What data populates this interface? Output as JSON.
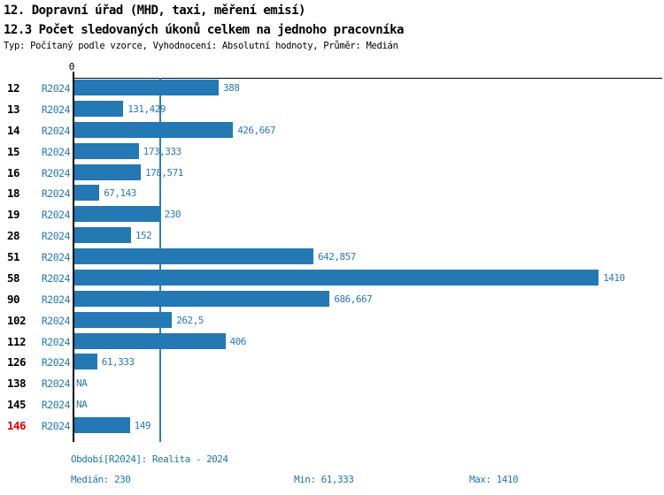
{
  "header": {
    "title1": "12. Dopravní úřad (MHD, taxi, měření emisí)",
    "title2": "12.3 Počet sledovaných úkonů celkem na jednoho pracovníka",
    "subtitle": "Typ: Počítaný podle vzorce, Vyhodnocení: Absolutní hodnoty, Průměr: Medián"
  },
  "chart_data": {
    "type": "bar",
    "orientation": "horizontal",
    "title": "12.3 Počet sledovaných úkonů celkem na jednoho pracovníka",
    "axis_zero_label": "0",
    "xlim": [
      0,
      1580
    ],
    "median_value": 230,
    "rows": [
      {
        "id": "12",
        "period": "R2024",
        "value": 388,
        "value_label": "388"
      },
      {
        "id": "13",
        "period": "R2024",
        "value": 131.429,
        "value_label": "131,429"
      },
      {
        "id": "14",
        "period": "R2024",
        "value": 426.667,
        "value_label": "426,667"
      },
      {
        "id": "15",
        "period": "R2024",
        "value": 173.333,
        "value_label": "173,333"
      },
      {
        "id": "16",
        "period": "R2024",
        "value": 178.571,
        "value_label": "178,571"
      },
      {
        "id": "18",
        "period": "R2024",
        "value": 67.143,
        "value_label": "67,143"
      },
      {
        "id": "19",
        "period": "R2024",
        "value": 230,
        "value_label": "230"
      },
      {
        "id": "28",
        "period": "R2024",
        "value": 152,
        "value_label": "152"
      },
      {
        "id": "51",
        "period": "R2024",
        "value": 642.857,
        "value_label": "642,857"
      },
      {
        "id": "58",
        "period": "R2024",
        "value": 1410,
        "value_label": "1410"
      },
      {
        "id": "90",
        "period": "R2024",
        "value": 686.667,
        "value_label": "686,667"
      },
      {
        "id": "102",
        "period": "R2024",
        "value": 262.5,
        "value_label": "262,5"
      },
      {
        "id": "112",
        "period": "R2024",
        "value": 406,
        "value_label": "406"
      },
      {
        "id": "126",
        "period": "R2024",
        "value": 61.333,
        "value_label": "61,333"
      },
      {
        "id": "138",
        "period": "R2024",
        "value": null,
        "value_label": "NA"
      },
      {
        "id": "145",
        "period": "R2024",
        "value": null,
        "value_label": "NA"
      },
      {
        "id": "146",
        "period": "R2024",
        "value": 149,
        "value_label": "149",
        "highlight": true
      }
    ],
    "colors": {
      "bar": "#2478b4",
      "blue_text": "#2878b5",
      "median_line": "#2e7eb5",
      "footer_text": "#2177a8",
      "highlight_row_id": "#e60000",
      "axis": "#000000"
    }
  },
  "footer": {
    "period_line": "Období[R2024]: Realita - 2024",
    "median_line": "Medián: 230",
    "min_line": "Min: 61,333",
    "max_line": "Max: 1410"
  }
}
